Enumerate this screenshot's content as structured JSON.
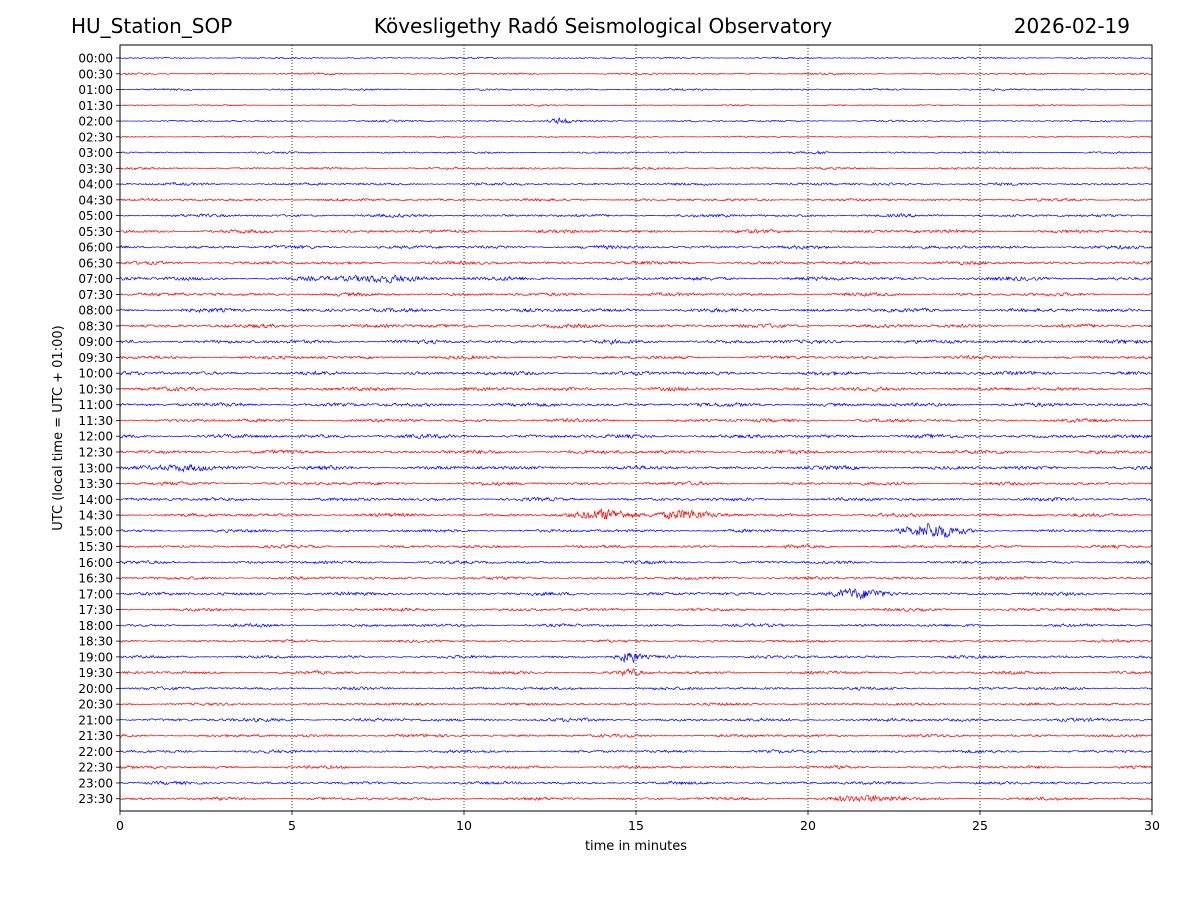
{
  "header": {
    "station": "HU_Station_SOP",
    "title": "Kövesligethy Radó Seismological Observatory",
    "date": "2026-02-19"
  },
  "chart_data": {
    "type": "line",
    "title": "Kövesligethy Radó Seismological Observatory",
    "xlabel": "time in minutes",
    "ylabel": "UTC (local time = UTC + 01:00)",
    "xlim": [
      0,
      30
    ],
    "xticks": [
      0,
      5,
      10,
      15,
      20,
      25,
      30
    ],
    "grid": "vertical dotted lines at 5-minute intervals",
    "colors": {
      "even_trace": "#0000ff",
      "odd_trace": "#ff0000",
      "grid": "#000000"
    },
    "row_labels": [
      "00:00",
      "00:30",
      "01:00",
      "01:30",
      "02:00",
      "02:30",
      "03:00",
      "03:30",
      "04:00",
      "04:30",
      "05:00",
      "05:30",
      "06:00",
      "06:30",
      "07:00",
      "07:30",
      "08:00",
      "08:30",
      "09:00",
      "09:30",
      "10:00",
      "10:30",
      "11:00",
      "11:30",
      "12:00",
      "12:30",
      "13:00",
      "13:30",
      "14:00",
      "14:30",
      "15:00",
      "15:30",
      "16:00",
      "16:30",
      "17:00",
      "17:30",
      "18:00",
      "18:30",
      "19:00",
      "19:30",
      "20:00",
      "20:30",
      "21:00",
      "21:30",
      "22:00",
      "22:30",
      "23:00",
      "23:30"
    ],
    "trace_amplitude": [
      0.4,
      0.5,
      0.5,
      0.4,
      0.5,
      0.4,
      0.5,
      0.6,
      0.7,
      0.7,
      0.8,
      0.9,
      0.9,
      0.9,
      1.0,
      0.9,
      1.0,
      1.0,
      1.0,
      0.9,
      1.0,
      1.0,
      1.0,
      0.9,
      1.0,
      1.0,
      1.0,
      0.9,
      0.9,
      0.9,
      0.8,
      0.8,
      0.8,
      0.8,
      0.9,
      0.8,
      0.8,
      0.7,
      0.8,
      0.8,
      0.8,
      0.7,
      0.9,
      0.8,
      0.8,
      0.8,
      0.8,
      0.8
    ],
    "events": [
      {
        "row": "02:00",
        "minute": 12.8,
        "width_min": 0.3,
        "amplitude": 3
      },
      {
        "row": "03:00",
        "minute": 20.4,
        "width_min": 0.2,
        "amplitude": 1.5
      },
      {
        "row": "07:00",
        "minute": 7.6,
        "width_min": 1.2,
        "amplitude": 1.6
      },
      {
        "row": "13:00",
        "minute": 2.0,
        "width_min": 0.8,
        "amplitude": 1.6
      },
      {
        "row": "14:30",
        "minute": 14.2,
        "width_min": 0.8,
        "amplitude": 3
      },
      {
        "row": "14:30",
        "minute": 16.3,
        "width_min": 0.8,
        "amplitude": 2.6
      },
      {
        "row": "15:00",
        "minute": 23.6,
        "width_min": 0.8,
        "amplitude": 4.5
      },
      {
        "row": "17:00",
        "minute": 21.5,
        "width_min": 0.8,
        "amplitude": 2.5
      },
      {
        "row": "19:00",
        "minute": 14.8,
        "width_min": 0.3,
        "amplitude": 4
      },
      {
        "row": "19:30",
        "minute": 14.8,
        "width_min": 0.3,
        "amplitude": 2
      },
      {
        "row": "23:30",
        "minute": 21.8,
        "width_min": 1.0,
        "amplitude": 1.8
      }
    ]
  }
}
